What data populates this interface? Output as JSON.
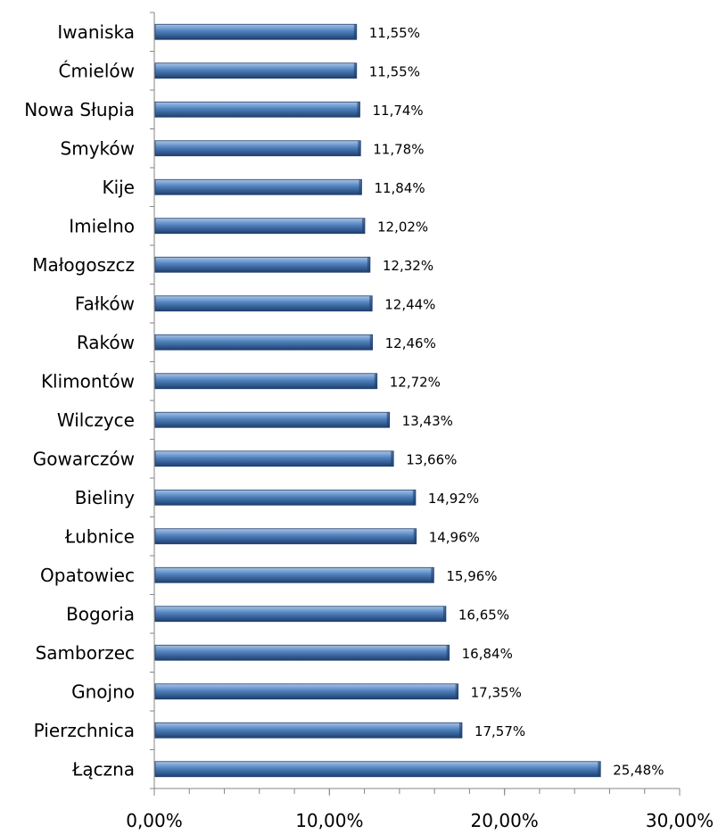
{
  "chart_data": {
    "type": "bar",
    "orientation": "horizontal",
    "categories": [
      "Iwaniska",
      "Ćmielów",
      "Nowa Słupia",
      "Smyków",
      "Kije",
      "Imielno",
      "Małogoszcz",
      "Fałków",
      "Raków",
      "Klimontów",
      "Wilczyce",
      "Gowarczów",
      "Bieliny",
      "Łubnice",
      "Opatowiec",
      "Bogoria",
      "Samborzec",
      "Gnojno",
      "Pierzchnica",
      "Łączna"
    ],
    "values": [
      11.55,
      11.55,
      11.74,
      11.78,
      11.84,
      12.02,
      12.32,
      12.44,
      12.46,
      12.72,
      13.43,
      13.66,
      14.92,
      14.96,
      15.96,
      16.65,
      16.84,
      17.35,
      17.57,
      25.48
    ],
    "value_labels": [
      "11,55%",
      "11,55%",
      "11,74%",
      "11,78%",
      "11,84%",
      "12,02%",
      "12,32%",
      "12,44%",
      "12,46%",
      "12,72%",
      "13,43%",
      "13,66%",
      "14,92%",
      "14,96%",
      "15,96%",
      "16,65%",
      "16,84%",
      "17,35%",
      "17,57%",
      "25,48%"
    ],
    "xlim": [
      0,
      30
    ],
    "x_ticks": [
      0,
      10,
      20,
      30
    ],
    "x_tick_labels": [
      "0,00%",
      "10,00%",
      "20,00%",
      "30,00%"
    ],
    "title": "",
    "xlabel": "",
    "ylabel": "",
    "grid": false,
    "legend": "none",
    "bar_color": "#4f81bd",
    "bar_color_dark": "#1f3f6e",
    "bar_color_light": "#a9c4e8"
  }
}
